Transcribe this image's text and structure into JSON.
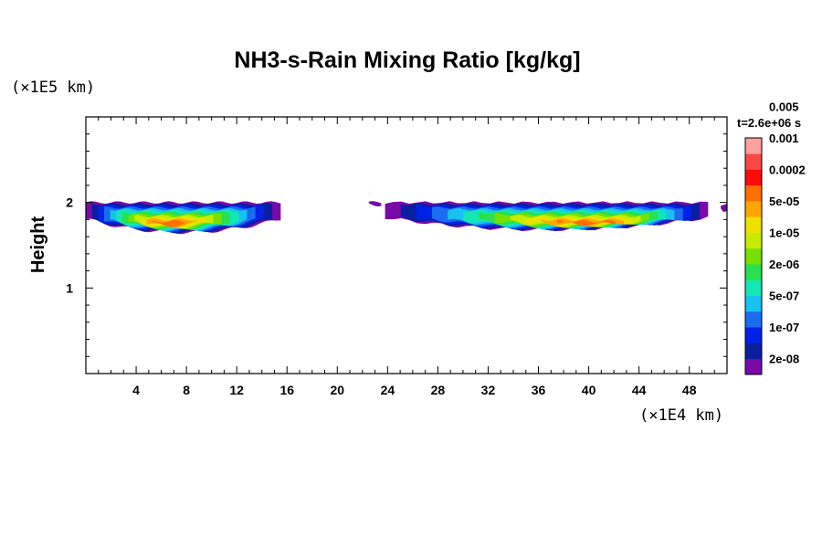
{
  "chart_data": {
    "type": "heatmap",
    "title": "NH3-s-Rain Mixing Ratio [kg/kg]",
    "xlabel": "",
    "ylabel": "Height",
    "x_unit": "(×1E4 km)",
    "y_unit": "(×1E5 km)",
    "time_label": "t=2.6e+06 s",
    "xlim": [
      0,
      51
    ],
    "ylim": [
      0,
      3
    ],
    "x_ticks": [
      4,
      8,
      12,
      16,
      20,
      24,
      28,
      32,
      36,
      40,
      44,
      48
    ],
    "x_tick_labels": [
      "4",
      "8",
      "12",
      "16",
      "20",
      "24",
      "28",
      "32",
      "36",
      "40",
      "44",
      "48"
    ],
    "y_ticks": [
      1,
      2
    ],
    "y_tick_labels": [
      "1",
      "2"
    ],
    "colorbar": {
      "levels_bottom_to_top": [
        "2e-08",
        "1e-07",
        "5e-07",
        "2e-06",
        "1e-05",
        "5e-05",
        "0.0002",
        "0.001",
        "0.005"
      ],
      "colors_bottom_to_top": [
        "#7a0aa8",
        "#0a1ea0",
        "#0022e6",
        "#1a6cf0",
        "#18c2f0",
        "#14e6b4",
        "#28e050",
        "#78e000",
        "#c8ec00",
        "#f0e000",
        "#ffa600",
        "#ff6e00",
        "#ff0a0a",
        "#f84848",
        "#fca0a0"
      ]
    },
    "regions": [
      {
        "name": "cloud-band-west",
        "x_range_1e4km": [
          0,
          15.5
        ],
        "height_range_1e5km": [
          1.65,
          2.0
        ],
        "max_level": "5e-05",
        "peak_x_1e4km": 6.5,
        "peak_height_1e5km": 1.8
      },
      {
        "name": "cloud-speck",
        "x_range_1e4km": [
          22.5,
          23.5
        ],
        "height_range_1e5km": [
          1.95,
          2.0
        ],
        "max_level": "2e-08",
        "peak_x_1e4km": 23,
        "peak_height_1e5km": 1.98
      },
      {
        "name": "cloud-band-east",
        "x_range_1e4km": [
          23.8,
          49.5
        ],
        "height_range_1e5km": [
          1.68,
          2.0
        ],
        "max_level": "5e-05",
        "peak_x_1e4km": 40.5,
        "peak_height_1e5km": 1.8
      },
      {
        "name": "cloud-edge-east",
        "x_range_1e4km": [
          50.5,
          51
        ],
        "height_range_1e5km": [
          1.9,
          1.97
        ],
        "max_level": "2e-08",
        "peak_x_1e4km": 51,
        "peak_height_1e5km": 1.93
      }
    ]
  }
}
